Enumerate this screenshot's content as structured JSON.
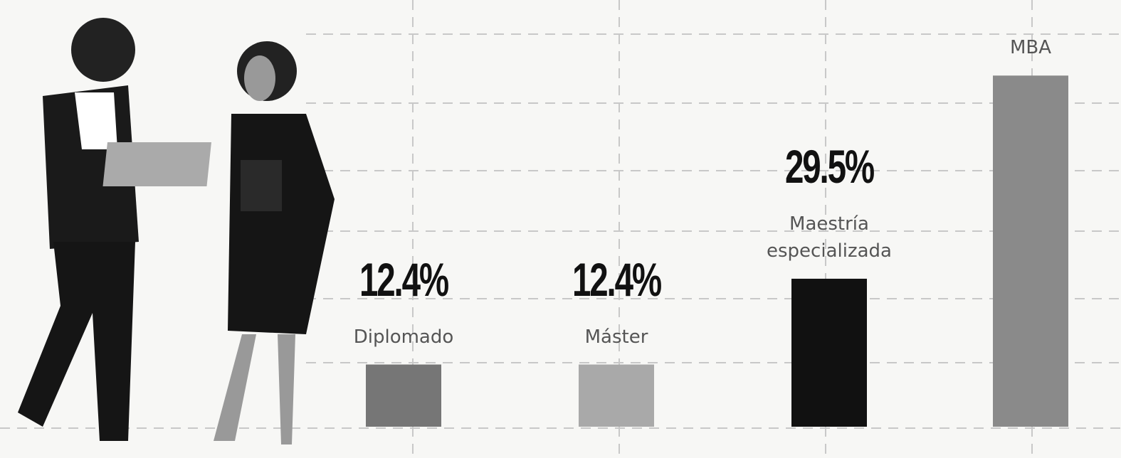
{
  "chart_data": {
    "type": "bar",
    "categories": [
      "Diplomado",
      "Máster",
      "Maestría especializada",
      "MBA"
    ],
    "values": [
      12.4,
      12.4,
      29.5,
      70
    ],
    "value_labels": [
      "12.4%",
      "12.4%",
      "29.5%",
      null
    ],
    "colors": [
      "#767676",
      "#a9a9a9",
      "#111111",
      "#8a8a8a"
    ],
    "ylim": [
      0,
      75
    ]
  }
}
